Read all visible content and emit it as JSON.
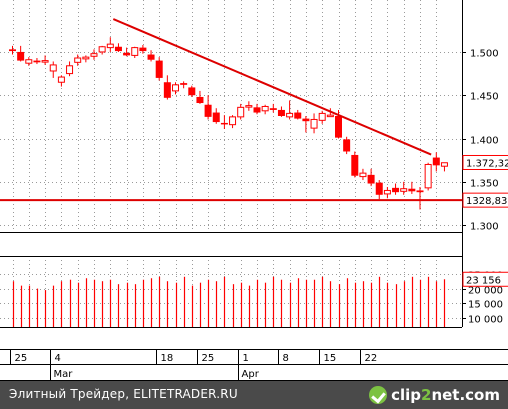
{
  "chart_data": {
    "type": "candlestick",
    "price": {
      "yticks": [
        1.3,
        1.35,
        1.4,
        1.45,
        1.5
      ],
      "ytick_labels": [
        "1.300",
        "1.350",
        "1.400",
        "1.450",
        "1.500"
      ],
      "ylim": [
        1.292,
        1.56
      ],
      "last_label": "1.372,32",
      "last_value": 1.3723,
      "support_label": "1328,83",
      "support_value": 1.3288,
      "trendline": {
        "start_bar": 12,
        "start_value": 1.538,
        "end_bar": 51,
        "end_value": 1.3815
      },
      "candles": [
        [
          1.503,
          1.507,
          1.497,
          1.501
        ],
        [
          1.5,
          1.507,
          1.489,
          1.49
        ],
        [
          1.487,
          1.494,
          1.484,
          1.491
        ],
        [
          1.49,
          1.493,
          1.486,
          1.488
        ],
        [
          1.49,
          1.496,
          1.485,
          1.49
        ],
        [
          1.478,
          1.489,
          1.47,
          1.485
        ],
        [
          1.465,
          1.473,
          1.46,
          1.471
        ],
        [
          1.475,
          1.489,
          1.472,
          1.484
        ],
        [
          1.488,
          1.497,
          1.484,
          1.493
        ],
        [
          1.492,
          1.496,
          1.488,
          1.494
        ],
        [
          1.495,
          1.503,
          1.491,
          1.498
        ],
        [
          1.5,
          1.507,
          1.497,
          1.506
        ],
        [
          1.505,
          1.517,
          1.5,
          1.509
        ],
        [
          1.506,
          1.51,
          1.5,
          1.501
        ],
        [
          1.499,
          1.505,
          1.495,
          1.496
        ],
        [
          1.496,
          1.506,
          1.493,
          1.505
        ],
        [
          1.505,
          1.508,
          1.498,
          1.501
        ],
        [
          1.497,
          1.502,
          1.489,
          1.491
        ],
        [
          1.49,
          1.494,
          1.467,
          1.47
        ],
        [
          1.465,
          1.473,
          1.445,
          1.447
        ],
        [
          1.455,
          1.465,
          1.451,
          1.462
        ],
        [
          1.464,
          1.466,
          1.458,
          1.462
        ],
        [
          1.459,
          1.461,
          1.448,
          1.45
        ],
        [
          1.448,
          1.455,
          1.44,
          1.441
        ],
        [
          1.439,
          1.45,
          1.422,
          1.425
        ],
        [
          1.43,
          1.435,
          1.417,
          1.419
        ],
        [
          1.418,
          1.427,
          1.411,
          1.417
        ],
        [
          1.416,
          1.427,
          1.412,
          1.425
        ],
        [
          1.425,
          1.44,
          1.422,
          1.436
        ],
        [
          1.437,
          1.443,
          1.432,
          1.438
        ],
        [
          1.436,
          1.44,
          1.428,
          1.43
        ],
        [
          1.432,
          1.439,
          1.428,
          1.437
        ],
        [
          1.435,
          1.44,
          1.43,
          1.433
        ],
        [
          1.433,
          1.437,
          1.425,
          1.426
        ],
        [
          1.425,
          1.444,
          1.422,
          1.429
        ],
        [
          1.43,
          1.433,
          1.422,
          1.423
        ],
        [
          1.423,
          1.426,
          1.407,
          1.42
        ],
        [
          1.412,
          1.429,
          1.406,
          1.422
        ],
        [
          1.421,
          1.432,
          1.417,
          1.429
        ],
        [
          1.427,
          1.435,
          1.425,
          1.427
        ],
        [
          1.426,
          1.433,
          1.4,
          1.401
        ],
        [
          1.399,
          1.402,
          1.382,
          1.385
        ],
        [
          1.381,
          1.385,
          1.355,
          1.357
        ],
        [
          1.356,
          1.365,
          1.352,
          1.36
        ],
        [
          1.358,
          1.365,
          1.345,
          1.348
        ],
        [
          1.349,
          1.352,
          1.33,
          1.335
        ],
        [
          1.336,
          1.344,
          1.331,
          1.34
        ],
        [
          1.343,
          1.348,
          1.335,
          1.338
        ],
        [
          1.339,
          1.35,
          1.335,
          1.342
        ],
        [
          1.342,
          1.35,
          1.336,
          1.339
        ],
        [
          1.34,
          1.344,
          1.318,
          1.338
        ],
        [
          1.343,
          1.372,
          1.34,
          1.37
        ],
        [
          1.378,
          1.384,
          1.362,
          1.369
        ],
        [
          1.368,
          1.372,
          1.362,
          1.372
        ]
      ]
    },
    "volume": {
      "yticks": [
        10000,
        15000,
        20000,
        25000
      ],
      "ytick_labels": [
        "10 000",
        "15 000",
        "20 000",
        "25 000"
      ],
      "ylim": [
        7000,
        29000
      ],
      "last_label": "23 156",
      "last_value": 23156,
      "values": [
        22500,
        21000,
        21000,
        20000,
        19500,
        21000,
        22500,
        23000,
        22000,
        23500,
        23000,
        22500,
        23000,
        21500,
        22000,
        21500,
        23000,
        23500,
        24000,
        22500,
        22000,
        24000,
        21000,
        22000,
        23000,
        22500,
        24000,
        21500,
        22000,
        21000,
        23000,
        22000,
        24000,
        23000,
        22000,
        23500,
        23000,
        23000,
        24000,
        22500,
        21500,
        23500,
        22000,
        22500,
        22000,
        24000,
        22000,
        21500,
        22500,
        24000,
        23000,
        24000,
        22500,
        23156
      ]
    },
    "x_axis": {
      "day_labels": [
        {
          "bar": 0,
          "text": "25"
        },
        {
          "bar": 5,
          "text": "4"
        },
        {
          "bar": 18,
          "text": "18"
        },
        {
          "bar": 23,
          "text": "25"
        },
        {
          "bar": 28,
          "text": "1"
        },
        {
          "bar": 33,
          "text": "8"
        },
        {
          "bar": 38,
          "text": "15"
        },
        {
          "bar": 43,
          "text": "22"
        }
      ],
      "month_labels": [
        {
          "bar": 5,
          "text": "Mar"
        },
        {
          "bar": 28,
          "text": "Apr"
        }
      ]
    },
    "grid": true
  },
  "footer": {
    "text": "Элитный Трейдер, ELITETRADER.RU",
    "logo_main": "clip",
    "logo_accent": "2",
    "logo_tail": "net.com"
  },
  "colors": {
    "candle": "#ff0000",
    "trend": "#dd0000",
    "grid": "#9a9a9a",
    "label_bg": "#ffffff",
    "label_border": "#ff0000"
  }
}
